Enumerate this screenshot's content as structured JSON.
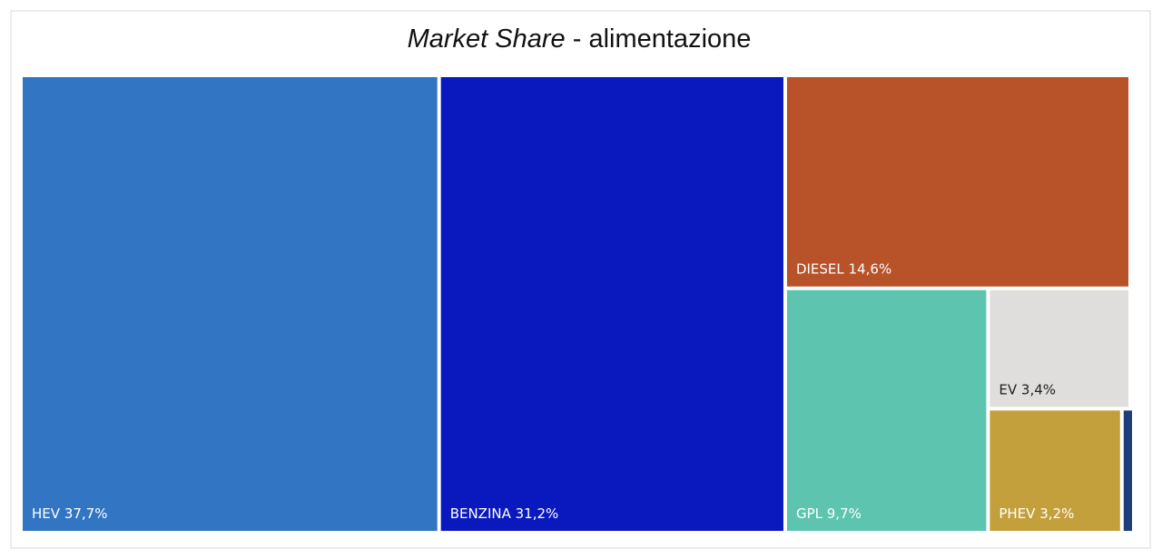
{
  "chart_data": {
    "type": "treemap",
    "title": {
      "italic": "Market Share",
      "rest": "- alimentazione"
    },
    "categories": [
      "HEV",
      "BENZINA",
      "DIESEL",
      "GPL",
      "EV",
      "PHEV",
      null
    ],
    "values": [
      37.7,
      31.2,
      14.6,
      9.7,
      3.4,
      3.2,
      0.2
    ],
    "value_labels": [
      "37,7%",
      "31,2%",
      "14,6%",
      "9,7%",
      "3,4%",
      "3,2%",
      null
    ],
    "colors": [
      "#3276c3",
      "#0a19be",
      "#b85228",
      "#5dc4b0",
      "#e0dedc",
      "#c4a03c",
      "#1f3f7a"
    ]
  }
}
